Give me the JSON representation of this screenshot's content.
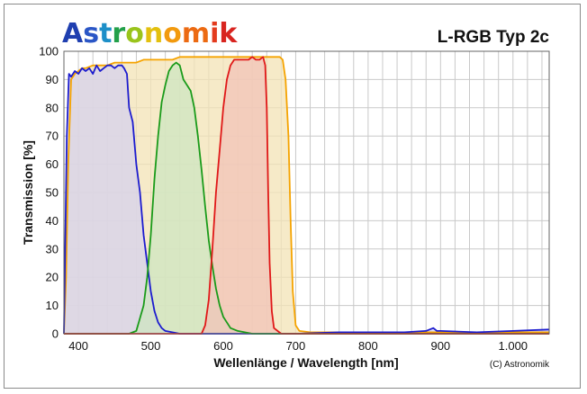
{
  "logo": {
    "text": "Astronomik",
    "letter_colors": [
      "#1f3fb0",
      "#2a56c6",
      "#1d8fc8",
      "#23a04a",
      "#9ac41c",
      "#e3c00e",
      "#f29a0e",
      "#ec6a12",
      "#e33b1e",
      "#d8241f"
    ]
  },
  "chart_data": {
    "type": "area",
    "title": "L-RGB Typ 2c",
    "xlabel": "Wellenlänge / Wavelength [nm]",
    "ylabel": "Transmission [%]",
    "xlim": [
      380,
      1050
    ],
    "ylim": [
      0,
      100
    ],
    "x_ticks": [
      {
        "value": 400,
        "label": "400"
      },
      {
        "value": 500,
        "label": "500"
      },
      {
        "value": 600,
        "label": "600"
      },
      {
        "value": 700,
        "label": "700"
      },
      {
        "value": 800,
        "label": "800"
      },
      {
        "value": 900,
        "label": "900"
      },
      {
        "value": 1000,
        "label": "1.000"
      }
    ],
    "y_ticks": [
      0,
      10,
      20,
      30,
      40,
      50,
      60,
      70,
      80,
      90,
      100
    ],
    "grid": true,
    "copyright": "(C) Astronomik",
    "series": [
      {
        "color": "#f5a300",
        "fill": "#f3e3b6",
        "points": [
          [
            380,
            0
          ],
          [
            383,
            20
          ],
          [
            386,
            60
          ],
          [
            390,
            90
          ],
          [
            395,
            92
          ],
          [
            400,
            93
          ],
          [
            405,
            94
          ],
          [
            410,
            94
          ],
          [
            420,
            95
          ],
          [
            430,
            95
          ],
          [
            440,
            95
          ],
          [
            450,
            96
          ],
          [
            460,
            96
          ],
          [
            470,
            96
          ],
          [
            480,
            96
          ],
          [
            490,
            97
          ],
          [
            500,
            97
          ],
          [
            510,
            97
          ],
          [
            520,
            97
          ],
          [
            530,
            97
          ],
          [
            540,
            98
          ],
          [
            550,
            98
          ],
          [
            560,
            98
          ],
          [
            570,
            98
          ],
          [
            580,
            98
          ],
          [
            590,
            98
          ],
          [
            600,
            98
          ],
          [
            620,
            98
          ],
          [
            640,
            98
          ],
          [
            660,
            98
          ],
          [
            670,
            98
          ],
          [
            678,
            98
          ],
          [
            682,
            97
          ],
          [
            686,
            90
          ],
          [
            690,
            70
          ],
          [
            693,
            40
          ],
          [
            696,
            15
          ],
          [
            700,
            3
          ],
          [
            705,
            1
          ],
          [
            720,
            0.5
          ],
          [
            760,
            0.5
          ],
          [
            800,
            0.5
          ],
          [
            850,
            0.5
          ],
          [
            900,
            0.5
          ],
          [
            950,
            0.5
          ],
          [
            1000,
            0.5
          ],
          [
            1050,
            0.5
          ]
        ]
      },
      {
        "color": "#1c1ccf",
        "fill": "#d6d1ee",
        "points": [
          [
            380,
            0
          ],
          [
            384,
            70
          ],
          [
            387,
            92
          ],
          [
            390,
            91
          ],
          [
            395,
            93
          ],
          [
            400,
            92
          ],
          [
            405,
            94
          ],
          [
            410,
            93
          ],
          [
            415,
            94
          ],
          [
            420,
            92
          ],
          [
            425,
            95
          ],
          [
            430,
            93
          ],
          [
            435,
            94
          ],
          [
            440,
            95
          ],
          [
            445,
            95
          ],
          [
            450,
            94
          ],
          [
            455,
            95
          ],
          [
            460,
            95
          ],
          [
            463,
            94
          ],
          [
            467,
            92
          ],
          [
            470,
            80
          ],
          [
            475,
            75
          ],
          [
            480,
            60
          ],
          [
            485,
            50
          ],
          [
            490,
            35
          ],
          [
            495,
            25
          ],
          [
            500,
            15
          ],
          [
            505,
            8
          ],
          [
            510,
            4
          ],
          [
            515,
            2
          ],
          [
            520,
            1
          ],
          [
            540,
            0
          ],
          [
            600,
            0
          ],
          [
            700,
            0
          ],
          [
            760,
            0.5
          ],
          [
            800,
            0.5
          ],
          [
            850,
            0.5
          ],
          [
            880,
            1
          ],
          [
            890,
            2
          ],
          [
            895,
            1
          ],
          [
            900,
            1
          ],
          [
            950,
            0.5
          ],
          [
            1000,
            1
          ],
          [
            1050,
            1.5
          ]
        ]
      },
      {
        "color": "#1a9b1a",
        "fill": "#cde6c2",
        "points": [
          [
            380,
            0
          ],
          [
            470,
            0
          ],
          [
            480,
            1
          ],
          [
            490,
            10
          ],
          [
            495,
            20
          ],
          [
            500,
            35
          ],
          [
            505,
            55
          ],
          [
            510,
            70
          ],
          [
            515,
            82
          ],
          [
            520,
            88
          ],
          [
            525,
            93
          ],
          [
            530,
            95
          ],
          [
            535,
            96
          ],
          [
            540,
            95
          ],
          [
            545,
            90
          ],
          [
            550,
            88
          ],
          [
            555,
            86
          ],
          [
            560,
            80
          ],
          [
            565,
            70
          ],
          [
            570,
            58
          ],
          [
            575,
            45
          ],
          [
            580,
            33
          ],
          [
            585,
            24
          ],
          [
            590,
            16
          ],
          [
            595,
            10
          ],
          [
            600,
            6
          ],
          [
            610,
            2
          ],
          [
            620,
            1
          ],
          [
            640,
            0
          ],
          [
            700,
            0
          ],
          [
            1050,
            0
          ]
        ]
      },
      {
        "color": "#e01818",
        "fill": "#f1c3b8",
        "points": [
          [
            380,
            0
          ],
          [
            570,
            0
          ],
          [
            575,
            3
          ],
          [
            580,
            12
          ],
          [
            585,
            30
          ],
          [
            590,
            50
          ],
          [
            595,
            65
          ],
          [
            600,
            80
          ],
          [
            605,
            90
          ],
          [
            610,
            95
          ],
          [
            615,
            97
          ],
          [
            620,
            97
          ],
          [
            625,
            97
          ],
          [
            630,
            97
          ],
          [
            635,
            97
          ],
          [
            640,
            98
          ],
          [
            645,
            97
          ],
          [
            650,
            97
          ],
          [
            655,
            98
          ],
          [
            658,
            95
          ],
          [
            660,
            80
          ],
          [
            662,
            50
          ],
          [
            664,
            25
          ],
          [
            667,
            8
          ],
          [
            670,
            2
          ],
          [
            680,
            0
          ],
          [
            1050,
            0
          ]
        ]
      }
    ]
  }
}
